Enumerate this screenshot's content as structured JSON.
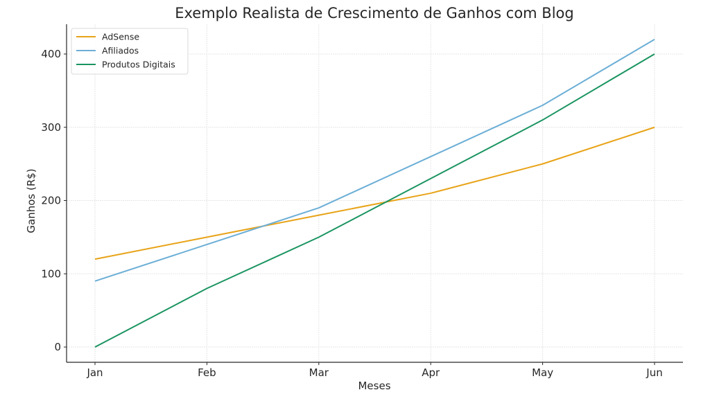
{
  "chart_data": {
    "type": "line",
    "title": "Exemplo Realista de Crescimento de Ganhos com Blog",
    "xlabel": "Meses",
    "ylabel": "Ganhos (R$)",
    "categories": [
      "Jan",
      "Feb",
      "Mar",
      "Apr",
      "May",
      "Jun"
    ],
    "yticks": [
      0,
      100,
      200,
      300,
      400
    ],
    "ylim": [
      -20,
      440
    ],
    "grid": true,
    "legend_position": "upper left",
    "series": [
      {
        "name": "AdSense",
        "color": "#E8A317",
        "values": [
          120,
          150,
          180,
          210,
          250,
          300
        ]
      },
      {
        "name": "Afiliados",
        "color": "#6BAED6",
        "values": [
          90,
          140,
          190,
          260,
          330,
          420
        ]
      },
      {
        "name": "Produtos Digitais",
        "color": "#1A9460",
        "values": [
          0,
          80,
          150,
          230,
          310,
          400
        ]
      }
    ]
  }
}
